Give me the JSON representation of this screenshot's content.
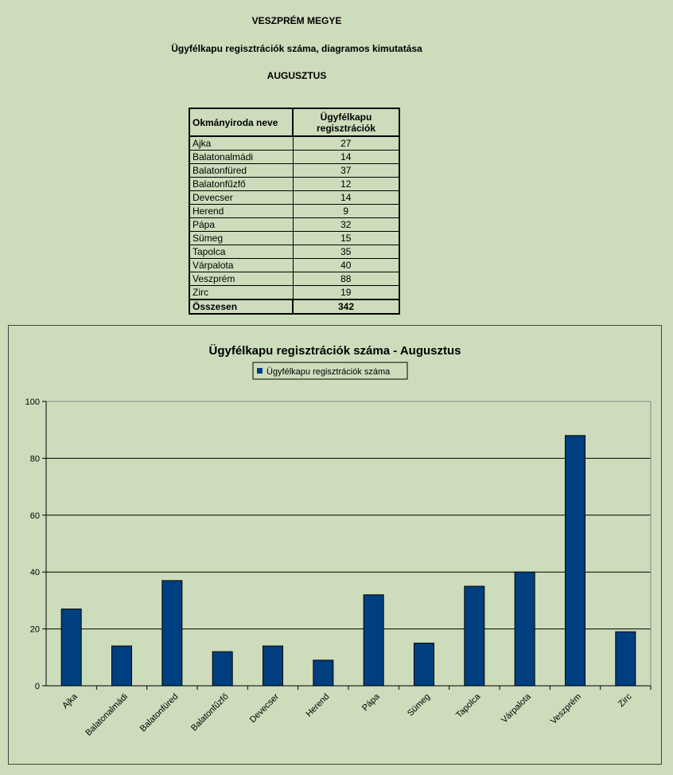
{
  "header": {
    "county": "VESZPRÉM MEGYE",
    "subtitle": "Ügyfélkapu regisztrációk száma, diagramos kimutatása",
    "month": "AUGUSZTUS"
  },
  "table": {
    "col1_header": "Okmányiroda neve",
    "col2_header_line1": "Ügyfélkapu",
    "col2_header_line2": "regisztrációk",
    "rows": [
      {
        "name": "Ajka",
        "value": "27"
      },
      {
        "name": "Balatonalmádi",
        "value": "14"
      },
      {
        "name": "Balatonfüred",
        "value": "37"
      },
      {
        "name": "Balatonfűzfő",
        "value": "12"
      },
      {
        "name": "Devecser",
        "value": "14"
      },
      {
        "name": "Herend",
        "value": "9"
      },
      {
        "name": "Pápa",
        "value": "32"
      },
      {
        "name": "Sümeg",
        "value": "15"
      },
      {
        "name": "Tapolca",
        "value": "35"
      },
      {
        "name": "Várpalota",
        "value": "40"
      },
      {
        "name": "Veszprém",
        "value": "88"
      },
      {
        "name": "Zirc",
        "value": "19"
      }
    ],
    "total_label": "Összesen",
    "total_value": "342"
  },
  "chart_data": {
    "type": "bar",
    "title": "Ügyfélkapu regisztrációk száma - Augusztus",
    "categories": [
      "Ajka",
      "Balatonalmádi",
      "Balatonfüred",
      "Balatonfűzfő",
      "Devecser",
      "Herend",
      "Pápa",
      "Sümeg",
      "Tapolca",
      "Várpalota",
      "Veszprém",
      "Zirc"
    ],
    "series": [
      {
        "name": "Ügyfélkapu regisztrációk száma",
        "values": [
          27,
          14,
          37,
          12,
          14,
          9,
          32,
          15,
          35,
          40,
          88,
          19
        ],
        "color": "#003f7f"
      }
    ],
    "ylim": [
      0,
      100
    ],
    "yticks": [
      0,
      20,
      40,
      60,
      80,
      100
    ],
    "xlabel": "",
    "ylabel": "",
    "grid": true,
    "legend": "top-center"
  },
  "colors": {
    "background": "#cddcbb",
    "bar": "#003f7f"
  }
}
